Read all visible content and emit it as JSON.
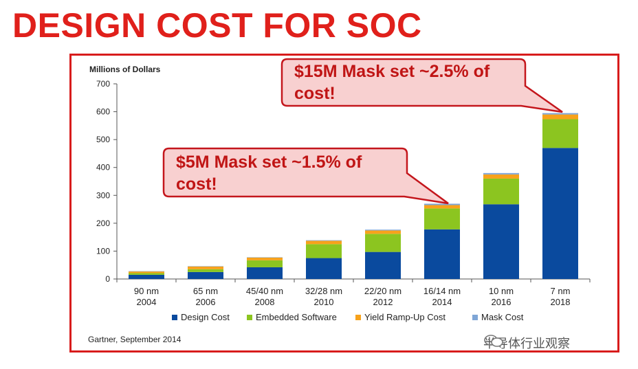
{
  "slide": {
    "title": "DESIGN COST FOR SOC"
  },
  "callouts": [
    {
      "text_line1": "$15M Mask set ~2.5% of",
      "text_line2": "cost!"
    },
    {
      "text_line1": "$5M Mask set ~1.5% of",
      "text_line2": "cost!"
    }
  ],
  "source": "Gartner, September 2014",
  "watermark": "半导体行业观察",
  "colors": {
    "title": "#e0201b",
    "frame": "#d81c1c",
    "callout_fill": "#f8d0d0",
    "callout_border": "#c4161c",
    "callout_text": "#c01515"
  },
  "chart_data": {
    "type": "bar",
    "stacked": true,
    "ylabel": "Millions of Dollars",
    "ylim": [
      0,
      700
    ],
    "yticks": [
      0,
      100,
      200,
      300,
      400,
      500,
      600,
      700
    ],
    "categories": [
      {
        "line1": "90 nm",
        "line2": "2004"
      },
      {
        "line1": "65 nm",
        "line2": "2006"
      },
      {
        "line1": "45/40 nm",
        "line2": "2008"
      },
      {
        "line1": "32/28 nm",
        "line2": "2010"
      },
      {
        "line1": "22/20 nm",
        "line2": "2012"
      },
      {
        "line1": "16/14 nm",
        "line2": "2014"
      },
      {
        "line1": "10 nm",
        "line2": "2016"
      },
      {
        "line1": "7 nm",
        "line2": "2018"
      }
    ],
    "series": [
      {
        "name": "Design Cost",
        "color": "#0a4a9e",
        "values": [
          15,
          25,
          42,
          75,
          97,
          178,
          268,
          470
        ]
      },
      {
        "name": "Embedded Software",
        "color": "#8cc520",
        "values": [
          6,
          10,
          25,
          50,
          65,
          75,
          92,
          103
        ]
      },
      {
        "name": "Yield Ramp-Up Cost",
        "color": "#f7a21b",
        "values": [
          6,
          10,
          10,
          12,
          12,
          12,
          15,
          17
        ]
      },
      {
        "name": "Mask Cost",
        "color": "#7fa6d6",
        "values": [
          1,
          1,
          1,
          2,
          3,
          5,
          5,
          5
        ]
      }
    ],
    "legend_position": "bottom",
    "grid": false
  }
}
